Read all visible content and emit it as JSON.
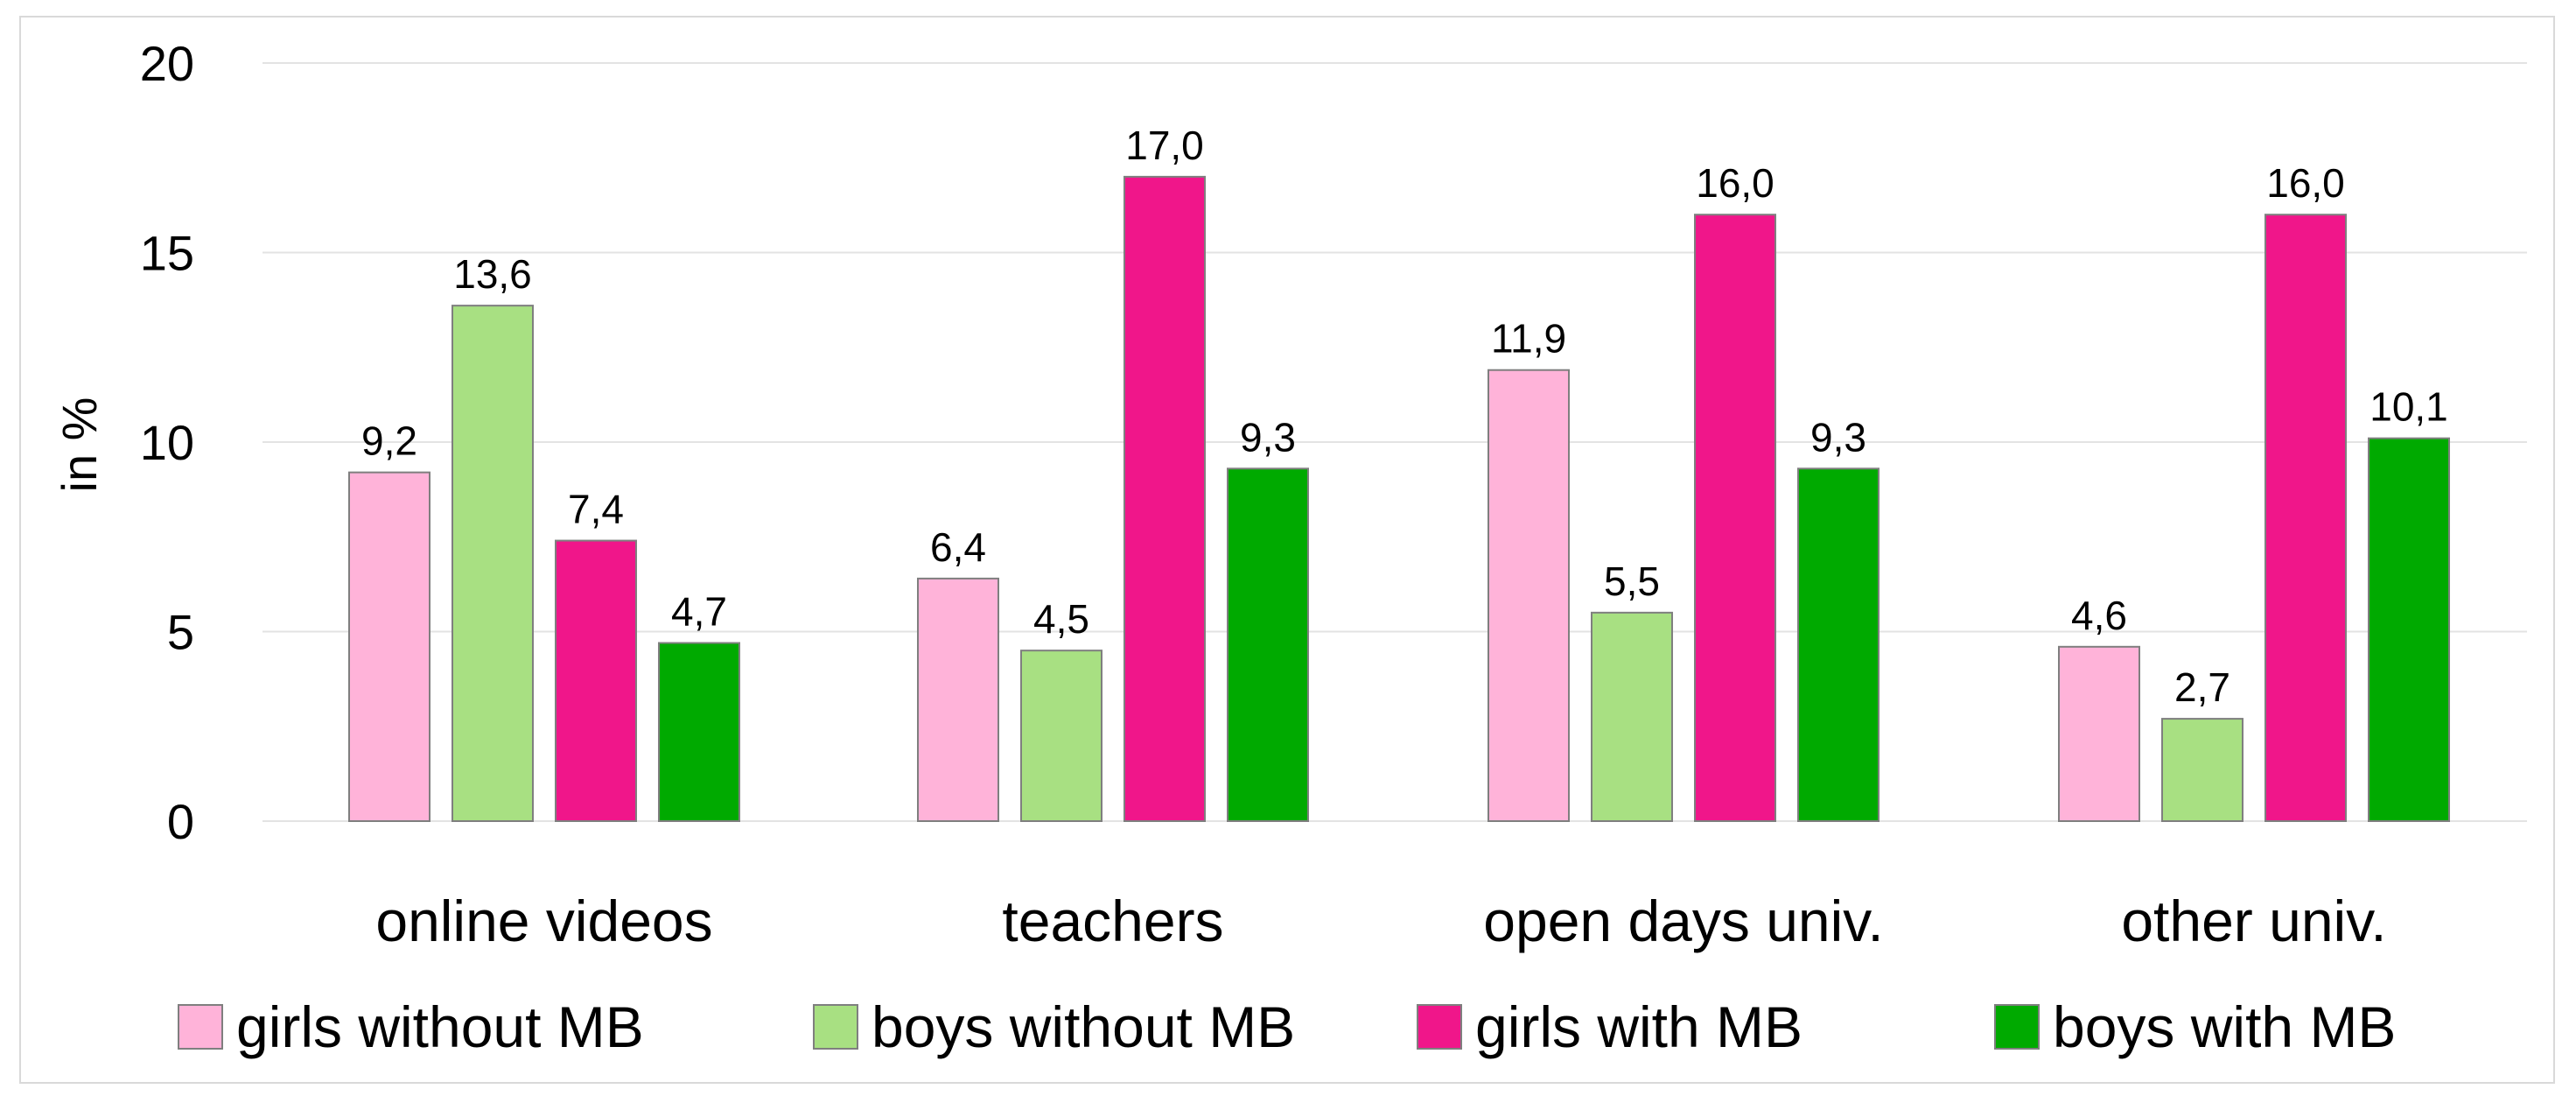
{
  "chart_data": {
    "type": "bar",
    "categories": [
      "online videos",
      "teachers",
      "open days univ.",
      "other univ."
    ],
    "series": [
      {
        "name": "girls without MB",
        "color": "#ffb3d9",
        "values": [
          9.2,
          6.4,
          11.9,
          4.6
        ],
        "labels": [
          "9,2",
          "6,4",
          "11,9",
          "4,6"
        ]
      },
      {
        "name": "boys without MB",
        "color": "#a8e082",
        "values": [
          13.6,
          4.5,
          5.5,
          2.7
        ],
        "labels": [
          "13,6",
          "4,5",
          "5,5",
          "2,7"
        ]
      },
      {
        "name": "girls with MB",
        "color": "#f0168a",
        "values": [
          7.4,
          17.0,
          16.0,
          16.0
        ],
        "labels": [
          "7,4",
          "17,0",
          "16,0",
          "16,0"
        ]
      },
      {
        "name": "boys with MB",
        "color": "#00aa00",
        "values": [
          4.7,
          9.3,
          9.3,
          10.1
        ],
        "labels": [
          "4,7",
          "9,3",
          "9,3",
          "10,1"
        ]
      }
    ],
    "ylabel": "in %",
    "ylim": [
      0,
      20
    ],
    "yticks": [
      0,
      5,
      10,
      15,
      20
    ],
    "grid": true,
    "legend_position": "bottom"
  }
}
